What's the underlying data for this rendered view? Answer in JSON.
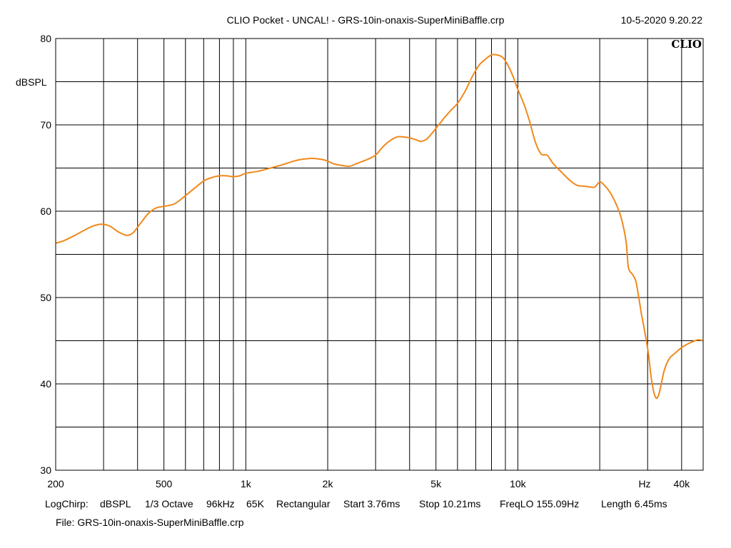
{
  "header": {
    "title": "CLIO Pocket - UNCAL! - GRS-10in-onaxis-SuperMiniBaffle.crp",
    "datetime": "10-5-2020 9.20.22",
    "logo_text": "CLIO"
  },
  "footer": {
    "settings": [
      "LogChirp:",
      "dBSPL",
      "1/3 Octave",
      "96kHz",
      "65K",
      "Rectangular",
      "Start 3.76ms",
      "Stop 10.21ms",
      "FreqLO 155.09Hz",
      "Length 6.45ms"
    ],
    "file": "File: GRS-10in-onaxis-SuperMiniBaffle.crp"
  },
  "chart_data": {
    "type": "line",
    "title": "CLIO Pocket - UNCAL! - GRS-10in-onaxis-SuperMiniBaffle.crp",
    "xlabel": "Hz",
    "ylabel": "dBSPL",
    "x_scale": "log",
    "xlim": [
      200,
      48000
    ],
    "ylim": [
      30,
      80
    ],
    "grid": true,
    "x_ticks": [
      {
        "value": 200,
        "label": "200"
      },
      {
        "value": 500,
        "label": "500"
      },
      {
        "value": 1000,
        "label": "1k"
      },
      {
        "value": 2000,
        "label": "2k"
      },
      {
        "value": 5000,
        "label": "5k"
      },
      {
        "value": 10000,
        "label": "10k"
      },
      {
        "value": 40000,
        "label": "40k"
      }
    ],
    "y_ticks": [
      {
        "value": 30,
        "label": "30"
      },
      {
        "value": 40,
        "label": "40"
      },
      {
        "value": 50,
        "label": "50"
      },
      {
        "value": 60,
        "label": "60"
      },
      {
        "value": 70,
        "label": "70"
      },
      {
        "value": 80,
        "label": "80"
      }
    ],
    "series": [
      {
        "color": "#f0891a",
        "x": [
          200,
          215,
          235,
          255,
          275,
          295,
          315,
          340,
          365,
          385,
          410,
          440,
          470,
          510,
          550,
          600,
          650,
          700,
          750,
          800,
          850,
          900,
          950,
          1000,
          1100,
          1200,
          1300,
          1400,
          1500,
          1600,
          1700,
          1800,
          1900,
          2000,
          2100,
          2250,
          2400,
          2500,
          2650,
          2800,
          3000,
          3200,
          3400,
          3600,
          3800,
          4000,
          4200,
          4400,
          4600,
          4800,
          5000,
          5300,
          5600,
          6000,
          6400,
          6800,
          7200,
          7600,
          8000,
          8400,
          8800,
          9200,
          9600,
          10000,
          10500,
          11000,
          11600,
          12200,
          12800,
          13500,
          14500,
          15500,
          16500,
          17500,
          18500,
          19200,
          20000,
          20800,
          21800,
          23000,
          24000,
          25000,
          25500,
          26500,
          27200,
          28000,
          28500,
          29300,
          30200,
          31000,
          32000,
          33000,
          34500,
          36000,
          38000,
          40000,
          42000,
          44000,
          46000,
          48000
        ],
        "y": [
          56.3,
          56.6,
          57.2,
          57.8,
          58.3,
          58.5,
          58.3,
          57.6,
          57.2,
          57.5,
          58.6,
          59.8,
          60.4,
          60.6,
          60.9,
          61.8,
          62.7,
          63.5,
          63.9,
          64.1,
          64.1,
          64.0,
          64.1,
          64.4,
          64.6,
          64.9,
          65.2,
          65.5,
          65.8,
          66.0,
          66.1,
          66.1,
          66.0,
          65.8,
          65.5,
          65.3,
          65.2,
          65.4,
          65.7,
          66.0,
          66.5,
          67.5,
          68.2,
          68.6,
          68.6,
          68.5,
          68.3,
          68.1,
          68.3,
          68.9,
          69.6,
          70.6,
          71.5,
          72.5,
          73.9,
          75.6,
          76.9,
          77.6,
          78.1,
          78.1,
          77.8,
          76.9,
          75.6,
          74.1,
          72.5,
          70.6,
          68.0,
          66.6,
          66.5,
          65.5,
          64.5,
          63.6,
          63.0,
          62.9,
          62.8,
          62.8,
          63.4,
          63.0,
          62.2,
          60.8,
          59.2,
          56.5,
          53.5,
          52.6,
          51.8,
          49.5,
          48.0,
          46.0,
          43.5,
          40.5,
          38.5,
          38.8,
          41.5,
          42.9,
          43.6,
          44.2,
          44.6,
          44.9,
          45.1,
          45.0
        ]
      }
    ]
  }
}
